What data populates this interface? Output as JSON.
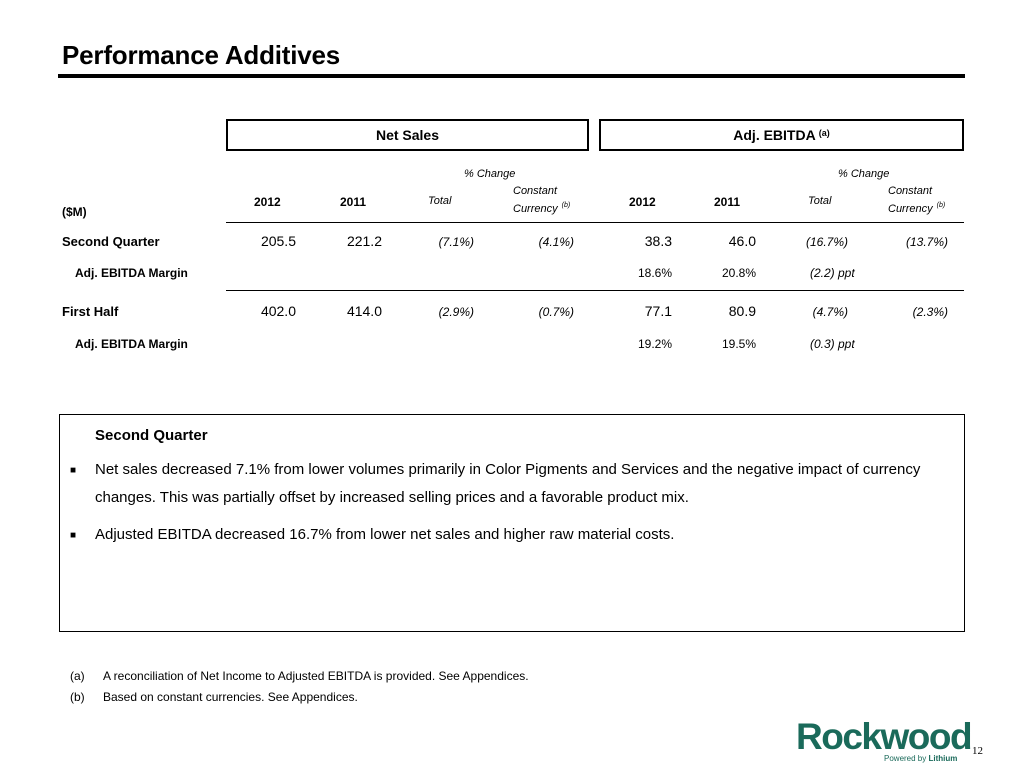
{
  "title": "Performance Additives",
  "table": {
    "net_sales_header": "Net Sales",
    "ebitda_header": "Adj. EBITDA",
    "ebitda_header_note": "(a)",
    "pct_change_label": "% Change",
    "units_label": "($M)",
    "col_2012": "2012",
    "col_2011": "2011",
    "col_total": "Total",
    "col_constant_line1": "Constant",
    "col_constant_line2": "Currency",
    "col_constant_note": "(b)",
    "rows": [
      {
        "label": "Second Quarter",
        "ns_2012": "205.5",
        "ns_2011": "221.2",
        "ns_total": "(7.1%)",
        "ns_cc": "(4.1%)",
        "eb_2012": "38.3",
        "eb_2011": "46.0",
        "eb_total": "(16.7%)",
        "eb_cc": "(13.7%)",
        "margin_label": "Adj. EBITDA Margin",
        "margin_2012": "18.6%",
        "margin_2011": "20.8%",
        "margin_change": "(2.2) ppt"
      },
      {
        "label": "First Half",
        "ns_2012": "402.0",
        "ns_2011": "414.0",
        "ns_total": "(2.9%)",
        "ns_cc": "(0.7%)",
        "eb_2012": "77.1",
        "eb_2011": "80.9",
        "eb_total": "(4.7%)",
        "eb_cc": "(2.3%)",
        "margin_label": "Adj. EBITDA Margin",
        "margin_2012": "19.2%",
        "margin_2011": "19.5%",
        "margin_change": "(0.3) ppt"
      }
    ]
  },
  "commentary": {
    "heading": "Second Quarter",
    "bullet_icon": "square-bullet-icon",
    "bullets": [
      "Net sales decreased 7.1% from lower volumes primarily in Color Pigments and Services and the negative impact of currency changes. This was partially offset by increased selling prices and a favorable product mix.",
      "Adjusted EBITDA decreased 16.7% from lower net sales and higher raw material costs."
    ]
  },
  "footnotes": [
    {
      "label": "(a)",
      "text": "A reconciliation of Net Income to Adjusted EBITDA is provided. See Appendices."
    },
    {
      "label": "(b)",
      "text": "Based on constant currencies. See Appendices."
    }
  ],
  "logo": {
    "word": "Rockwood",
    "tagline_prefix": "Powered by",
    "tagline_brand": "Lithium",
    "color": "#1a6a5a"
  },
  "page_number": "12"
}
